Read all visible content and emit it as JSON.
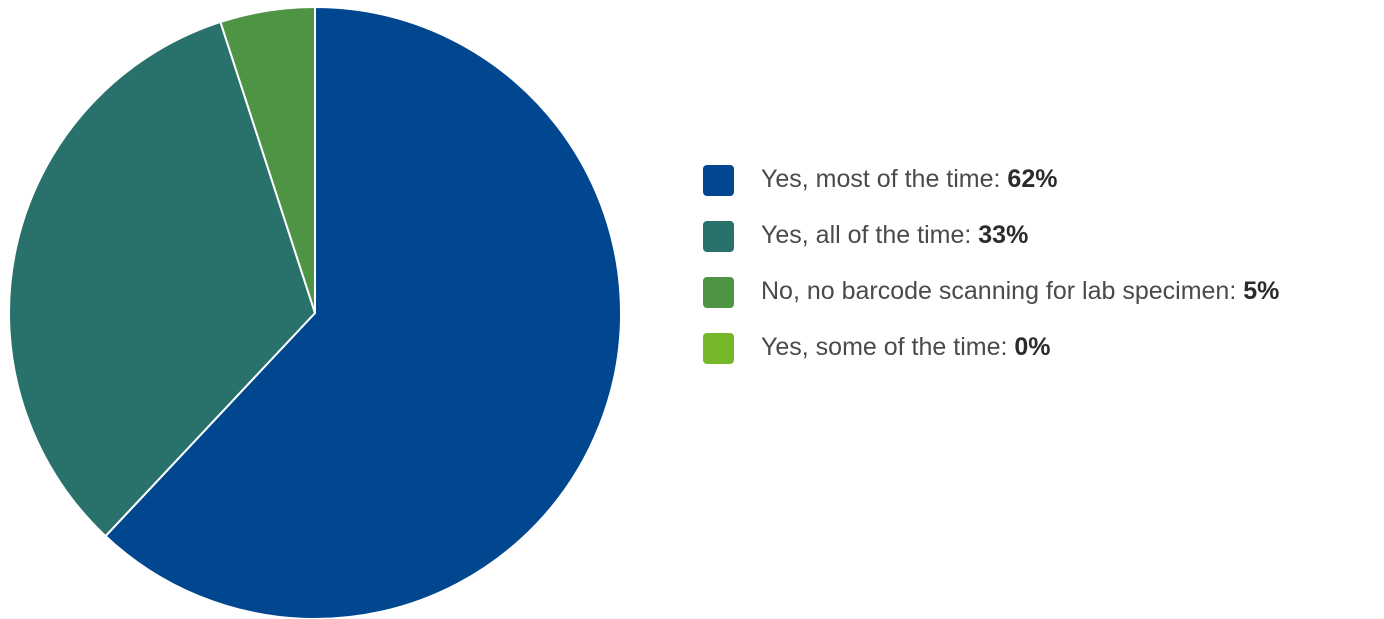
{
  "chart_data": {
    "type": "pie",
    "slices": [
      {
        "label": "Yes, most of the time:",
        "value": 62,
        "display": "62%",
        "color": "#00478f"
      },
      {
        "label": "Yes, all of the time:",
        "value": 33,
        "display": "33%",
        "color": "#29716b"
      },
      {
        "label": "No, no barcode scanning for lab specimen:",
        "value": 5,
        "display": "5%",
        "color": "#4f9444"
      },
      {
        "label": "Yes, some of the time:",
        "value": 0,
        "display": "0%",
        "color": "#76b82a"
      }
    ],
    "legend_position": "right"
  }
}
